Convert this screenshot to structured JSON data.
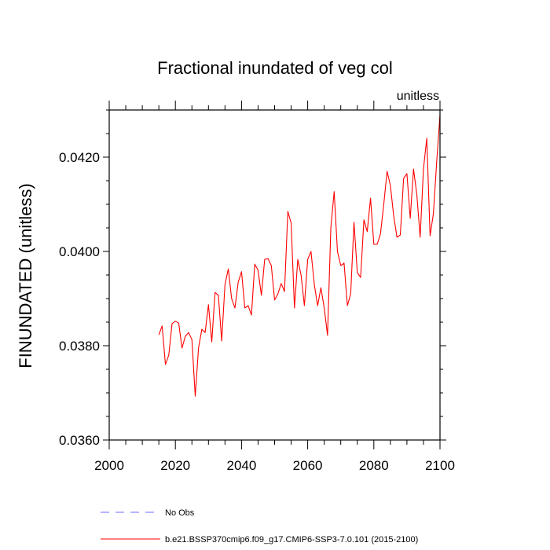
{
  "chart_data": {
    "type": "line",
    "title": "Fractional inundated of veg col",
    "units_label": "unitless",
    "xlabel": "",
    "ylabel": "FINUNDATED  (unitless)",
    "xlim": [
      2000,
      2100
    ],
    "ylim": [
      0.036,
      0.043
    ],
    "x_ticks": [
      2000,
      2020,
      2040,
      2060,
      2080,
      2100
    ],
    "y_ticks": [
      0.036,
      0.038,
      0.04,
      0.042
    ],
    "y_tick_labels": [
      "0.0360",
      "0.0380",
      "0.0400",
      "0.0420"
    ],
    "x_minor_step": 5,
    "y_minor_step": 0.0005,
    "series": [
      {
        "name": "b.e21.BSSP370cmip6.f09_g17.CMIP6-SSP3-7.0.101 (2015-2100)",
        "color": "#ff0000",
        "x": [
          2015,
          2016,
          2017,
          2018,
          2019,
          2020,
          2021,
          2022,
          2023,
          2024,
          2025,
          2026,
          2027,
          2028,
          2029,
          2030,
          2031,
          2032,
          2033,
          2034,
          2035,
          2036,
          2037,
          2038,
          2039,
          2040,
          2041,
          2042,
          2043,
          2044,
          2045,
          2046,
          2047,
          2048,
          2049,
          2050,
          2051,
          2052,
          2053,
          2054,
          2055,
          2056,
          2057,
          2058,
          2059,
          2060,
          2061,
          2062,
          2063,
          2064,
          2065,
          2066,
          2067,
          2068,
          2069,
          2070,
          2071,
          2072,
          2073,
          2074,
          2075,
          2076,
          2077,
          2078,
          2079,
          2080,
          2081,
          2082,
          2083,
          2084,
          2085,
          2086,
          2087,
          2088,
          2089,
          2090,
          2091,
          2092,
          2093,
          2094,
          2095,
          2096,
          2097,
          2098,
          2099,
          2100
        ],
        "values": [
          0.03823,
          0.03842,
          0.0376,
          0.0378,
          0.03847,
          0.03852,
          0.03848,
          0.03795,
          0.0382,
          0.03828,
          0.03813,
          0.03693,
          0.03795,
          0.03835,
          0.03828,
          0.03887,
          0.03808,
          0.03913,
          0.03907,
          0.0381,
          0.0393,
          0.03963,
          0.039,
          0.0388,
          0.03935,
          0.03957,
          0.0388,
          0.03885,
          0.03865,
          0.03973,
          0.0396,
          0.03907,
          0.03983,
          0.03985,
          0.0397,
          0.03897,
          0.0391,
          0.03932,
          0.03915,
          0.04085,
          0.0406,
          0.0388,
          0.03983,
          0.0395,
          0.03885,
          0.03983,
          0.04,
          0.0393,
          0.03885,
          0.03923,
          0.0388,
          0.03822,
          0.0405,
          0.04127,
          0.04,
          0.0397,
          0.03975,
          0.03885,
          0.0391,
          0.04062,
          0.03955,
          0.03945,
          0.04067,
          0.04042,
          0.04113,
          0.04015,
          0.04015,
          0.04037,
          0.041,
          0.0417,
          0.0414,
          0.04075,
          0.0403,
          0.04035,
          0.04155,
          0.04165,
          0.0407,
          0.04175,
          0.0412,
          0.0403,
          0.04175,
          0.0424,
          0.04033,
          0.0408,
          0.0419,
          0.0429
        ]
      },
      {
        "name": "No Obs",
        "color": "#6b6bff",
        "x": [],
        "values": []
      }
    ]
  }
}
